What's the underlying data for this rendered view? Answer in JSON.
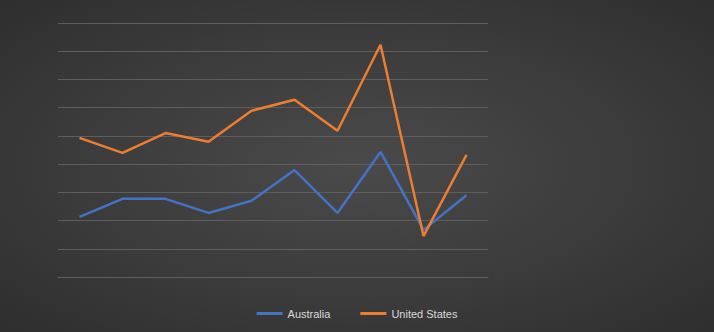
{
  "chart_data": {
    "type": "line",
    "categories": [
      null,
      null,
      null,
      null,
      null,
      null,
      null,
      null,
      null,
      null
    ],
    "series": [
      {
        "name": "Australia",
        "color": "#4472c4",
        "values": [
          2.13,
          2.77,
          2.77,
          2.27,
          2.7,
          3.79,
          2.27,
          4.43,
          1.67,
          2.9
        ]
      },
      {
        "name": "United States",
        "color": "#ed7d31",
        "values": [
          4.93,
          4.4,
          5.1,
          4.79,
          5.89,
          6.28,
          5.18,
          8.23,
          1.45,
          4.33
        ]
      }
    ],
    "ylim": [
      0,
      9
    ],
    "yticks": [
      0,
      1,
      2,
      3,
      4,
      5,
      6,
      7,
      8,
      9
    ],
    "grid": true,
    "legend": "bottom",
    "tick_labels": false
  }
}
